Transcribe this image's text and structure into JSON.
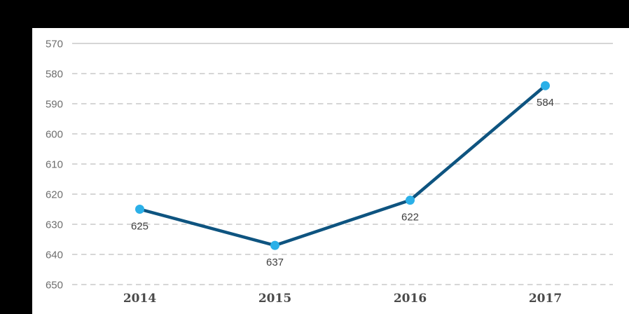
{
  "chart_data": {
    "type": "line",
    "title": "",
    "categories": [
      "2014",
      "2015",
      "2016",
      "2017"
    ],
    "values": [
      625,
      637,
      622,
      584
    ],
    "data_labels": [
      "625",
      "637",
      "622",
      "584"
    ],
    "y_axis": {
      "min": 570,
      "max": 650,
      "step": 10,
      "reversed": true,
      "tick_labels": [
        "570",
        "580",
        "590",
        "600",
        "610",
        "620",
        "630",
        "640",
        "650"
      ]
    },
    "x_axis": {
      "tick_labels": [
        "2014",
        "2015",
        "2016",
        "2017"
      ]
    },
    "legend": "none",
    "grid": {
      "horizontal": true,
      "style": "dashed",
      "top_line_style": "solid"
    },
    "colors": {
      "background": "#000000",
      "panel": "#FFFFFF",
      "line": "#0E5480",
      "marker": "#2BB0E8",
      "gridline": "#D6D6D6",
      "y_tick_label": "#6E6E6E",
      "x_tick_label": "#4A4A4A",
      "data_label": "#3F3F3F"
    }
  }
}
